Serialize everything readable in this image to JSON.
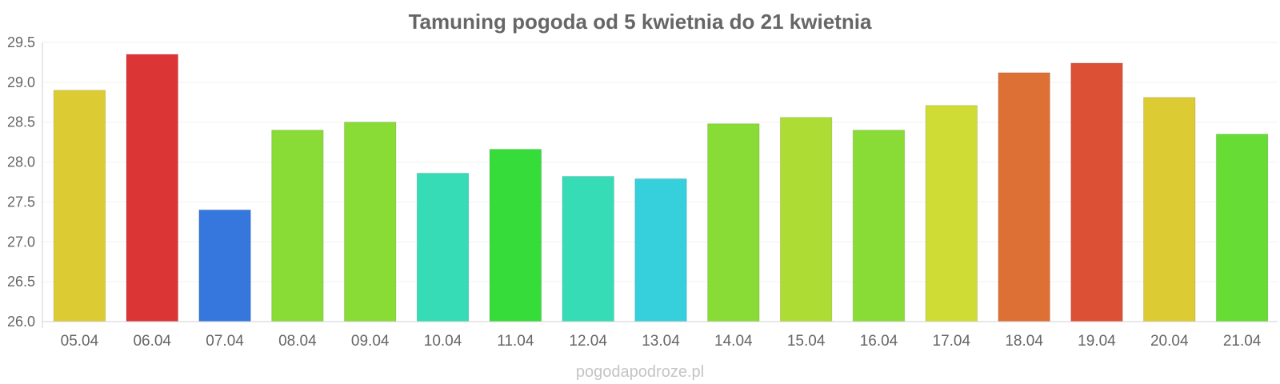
{
  "chart_data": {
    "type": "bar",
    "title": "Tamuning pogoda od 5 kwietnia do 21 kwietnia",
    "categories": [
      "05.04",
      "06.04",
      "07.04",
      "08.04",
      "09.04",
      "10.04",
      "11.04",
      "12.04",
      "13.04",
      "14.04",
      "15.04",
      "16.04",
      "17.04",
      "18.04",
      "19.04",
      "20.04",
      "21.04"
    ],
    "values": [
      28.9,
      29.35,
      27.4,
      28.4,
      28.5,
      27.86,
      28.16,
      27.82,
      27.79,
      28.48,
      28.56,
      28.4,
      28.71,
      29.12,
      29.24,
      28.81,
      28.35
    ],
    "colors": [
      "#dccb33",
      "#dc3535",
      "#3577dc",
      "#88dc35",
      "#88dc35",
      "#35dcb6",
      "#35dc3a",
      "#35dcb6",
      "#35d0dc",
      "#88dc35",
      "#addc35",
      "#88dc35",
      "#cfdc35",
      "#dc7035",
      "#dc5035",
      "#dccb33",
      "#66dc35"
    ],
    "yticks": [
      "26.0",
      "26.5",
      "27.0",
      "27.5",
      "28.0",
      "28.5",
      "29.0",
      "29.5"
    ],
    "ylim": [
      26.0,
      29.5
    ],
    "xlabel": "",
    "ylabel": "",
    "grid": true,
    "legend": "none"
  },
  "watermark": "pogodapodroze.pl"
}
